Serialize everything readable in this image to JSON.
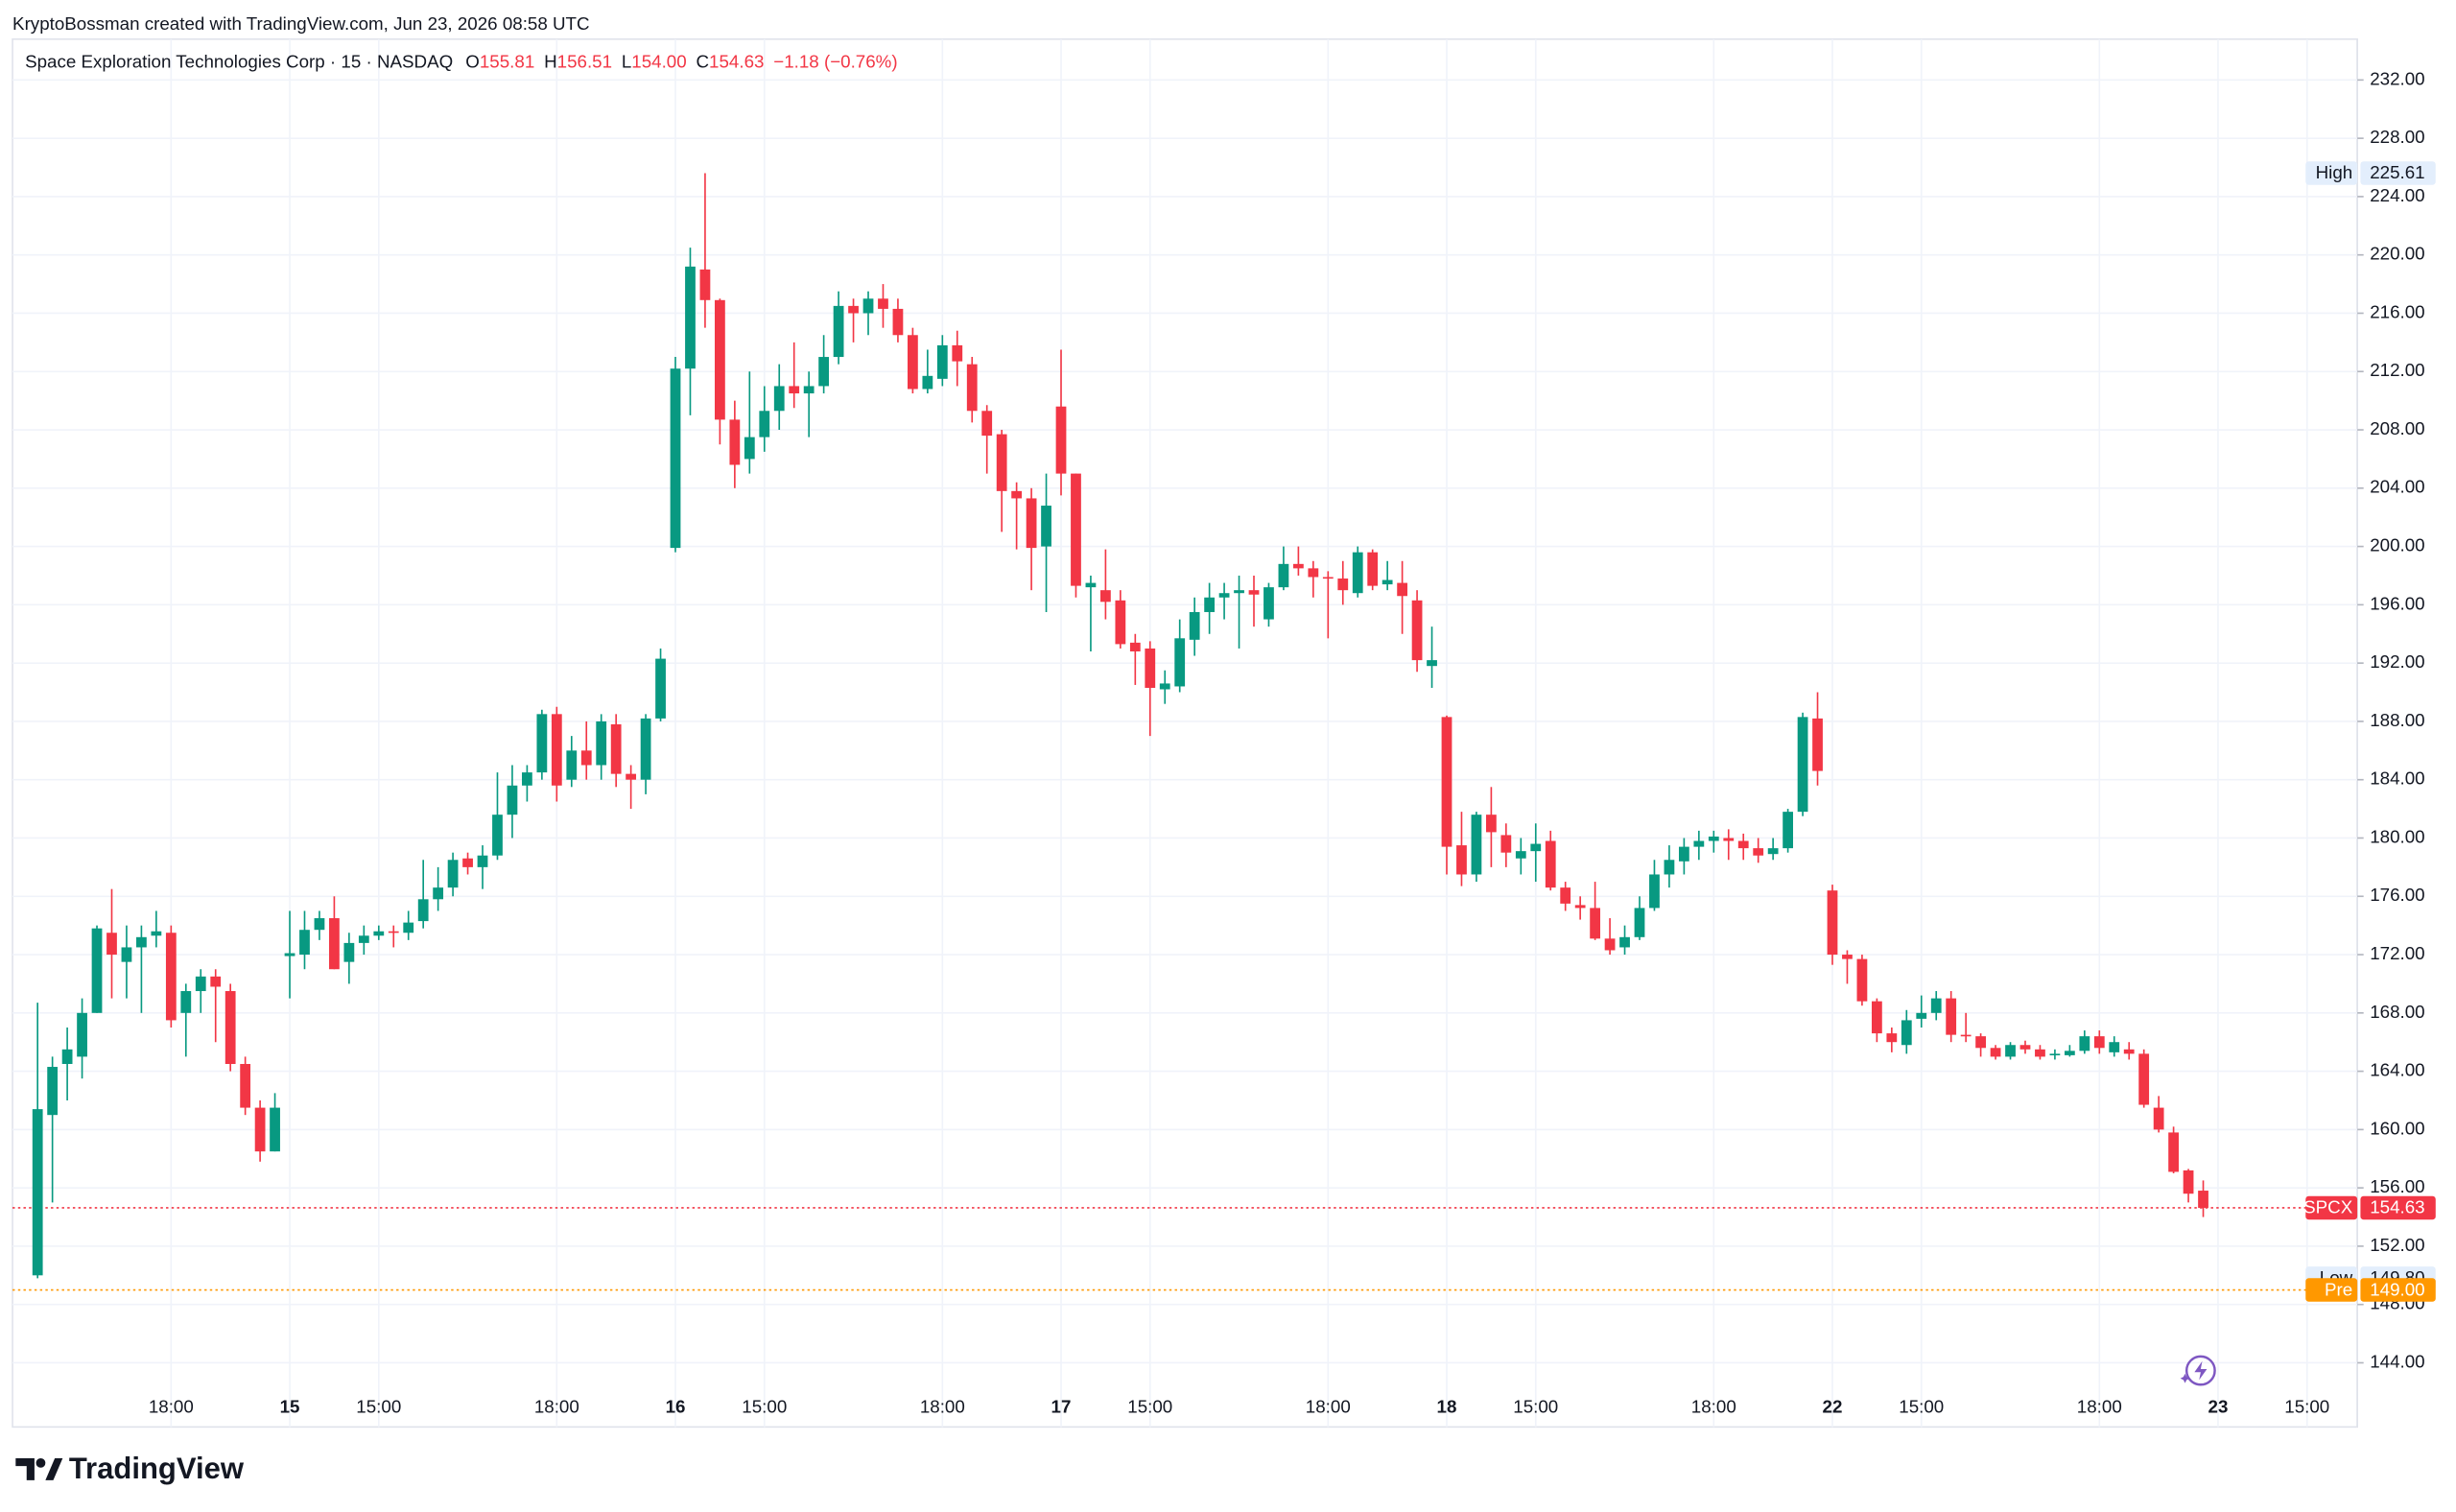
{
  "header": {
    "attribution": "KryptoBossman created with TradingView.com, Jun 23, 2026 08:58 UTC"
  },
  "footer": {
    "brand": "TradingView"
  },
  "chart_data": {
    "type": "candlestick",
    "title": "Space Exploration Technologies Corp · 15 · NASDAQ",
    "ohlc_legend": [
      {
        "key": "O",
        "value": 155.81
      },
      {
        "key": "H",
        "value": 156.51
      },
      {
        "key": "L",
        "value": 154,
        "label": "154.00"
      },
      {
        "key": "C",
        "value": 154.63
      }
    ],
    "change": "−1.18 (−0.76%)",
    "up_color": "#089981",
    "down_color": "#f23645",
    "categories": [
      null,
      null,
      null,
      null,
      null,
      null,
      null,
      null,
      null,
      "18:00",
      null,
      null,
      null,
      null,
      null,
      null,
      null,
      "15",
      null,
      null,
      null,
      null,
      null,
      "15:00",
      null,
      null,
      null,
      null,
      null,
      null,
      null,
      null,
      null,
      null,
      null,
      "18:00",
      null,
      null,
      null,
      null,
      null,
      null,
      null,
      "16",
      null,
      null,
      null,
      null,
      null,
      "15:00",
      null,
      null,
      null,
      null,
      null,
      null,
      null,
      null,
      null,
      null,
      null,
      "18:00",
      null,
      null,
      null,
      null,
      null,
      null,
      null,
      "17",
      null,
      null,
      null,
      null,
      null,
      "15:00",
      null,
      null,
      null,
      null,
      null,
      null,
      null,
      null,
      null,
      null,
      null,
      "18:00",
      null,
      null,
      null,
      null,
      null,
      null,
      null,
      "18",
      null,
      null,
      null,
      null,
      null,
      "15:00",
      null,
      null,
      null,
      null,
      null,
      null,
      null,
      null,
      null,
      null,
      null,
      "18:00",
      null,
      null,
      null,
      null,
      null,
      null,
      null,
      "22",
      null,
      null,
      null,
      null,
      null,
      "15:00",
      null,
      null,
      null,
      null,
      null,
      null,
      null,
      null,
      null,
      null,
      null,
      "18:00",
      null,
      null,
      null,
      null,
      null,
      null,
      null,
      "23",
      null,
      null,
      null,
      null,
      null,
      "15:00"
    ],
    "open": [
      150.0,
      161,
      164.5,
      165,
      168,
      173.5,
      171.5,
      172.5,
      173.3,
      173.5,
      168,
      169.5,
      170.5,
      169.5,
      164.5,
      161.5,
      158.5,
      171.9,
      172,
      173.7,
      174.5,
      171.5,
      172.8,
      173.3,
      173.6,
      173.5,
      174.3,
      175.8,
      176.6,
      178.6,
      178,
      178.8,
      181.6,
      183.6,
      184.5,
      188.5,
      184,
      186,
      185,
      187.8,
      184.4,
      184,
      188.2,
      199.9,
      212.2,
      219,
      216.9,
      208.7,
      206,
      207.5,
      209.3,
      211,
      210.5,
      211,
      213,
      216.5,
      216,
      217,
      216.3,
      214.5,
      210.8,
      211.5,
      213.8,
      212.5,
      209.3,
      207.7,
      203.8,
      203.3,
      200,
      209.6,
      205,
      197.2,
      197,
      196.3,
      193.4,
      193,
      190.2,
      190.4,
      193.6,
      195.5,
      196.5,
      196.8,
      197,
      195,
      197.2,
      198.8,
      198.5,
      197.9,
      197.8,
      196.8,
      199.6,
      197.4,
      197.5,
      196.3,
      191.8,
      188.3,
      179.5,
      177.5,
      181.6,
      180.2,
      178.6,
      179.1,
      179.8,
      176.6,
      175.4,
      175.2,
      173.1,
      172.5,
      173.2,
      175.2,
      177.5,
      178.4,
      179.4,
      179.8,
      180,
      179.8,
      179.3,
      178.9,
      179.3,
      181.8,
      188.2,
      176.4,
      172,
      171.7,
      168.8,
      166.6,
      165.8,
      167.6,
      168,
      169,
      166.5,
      166.4,
      165.6,
      165,
      165.8,
      165.5,
      165.1,
      165.1,
      165.4,
      166.4,
      165.3,
      165.5,
      165.2,
      161.5,
      159.8,
      157.2,
      155.81,
      null,
      null,
      null,
      null,
      null,
      null,
      null
    ],
    "high": [
      168.7,
      165,
      167,
      169,
      174,
      176.5,
      174,
      174,
      175,
      174,
      170,
      171,
      171,
      170,
      165,
      162,
      162.5,
      175,
      175,
      175,
      176,
      173.5,
      174,
      174,
      174,
      175,
      178.5,
      178,
      179,
      179,
      179.5,
      184.5,
      185,
      185,
      188.8,
      189,
      187,
      188,
      188.5,
      188.5,
      185,
      188.5,
      193,
      213,
      220.5,
      225.61,
      217,
      210,
      212,
      211,
      212.5,
      214,
      212,
      214.5,
      217.5,
      217,
      217.5,
      218,
      217,
      215,
      213.5,
      214.5,
      214.8,
      213,
      209.7,
      208,
      204.4,
      204,
      205,
      213.5,
      205,
      198,
      199.8,
      197,
      194,
      193.5,
      191.5,
      195,
      196.5,
      197.5,
      197.5,
      198,
      198,
      197.5,
      200,
      200,
      199,
      198.3,
      199,
      200,
      199.8,
      199,
      199,
      197,
      194.5,
      188.4,
      181.8,
      181.8,
      183.5,
      181,
      180,
      181,
      180.5,
      177,
      176,
      177,
      174.5,
      174,
      176,
      178.5,
      179.5,
      180,
      180.5,
      180.5,
      180.6,
      180.3,
      180,
      180,
      182,
      188.6,
      190,
      176.8,
      172.3,
      172,
      169,
      167,
      168.2,
      169.2,
      169.5,
      169.5,
      168,
      166.6,
      165.8,
      166,
      166.1,
      165.8,
      165.5,
      165.8,
      166.8,
      166.8,
      166.4,
      166,
      165.5,
      162.3,
      160.2,
      157.3,
      156.51,
      null,
      null,
      null,
      null,
      null,
      null,
      null
    ],
    "low": [
      149.8,
      155,
      162,
      163.5,
      168,
      169,
      169,
      168,
      172.5,
      167,
      165,
      168,
      166,
      164,
      161,
      157.8,
      158.5,
      169,
      171,
      173,
      171,
      170,
      172,
      173,
      172.5,
      173,
      173.8,
      175,
      176,
      177.5,
      176.5,
      178.5,
      180,
      182.5,
      184,
      182.5,
      183.5,
      184,
      184,
      183.5,
      182,
      183,
      188,
      199.6,
      209,
      215,
      207,
      204,
      205,
      206.5,
      208,
      209.5,
      207.5,
      210.5,
      212.5,
      214,
      214.5,
      215,
      214,
      210.5,
      210.5,
      211,
      211,
      208.5,
      205,
      201,
      199.8,
      197,
      195.5,
      203.5,
      196.5,
      192.8,
      195,
      193,
      190.5,
      187,
      189.2,
      190,
      192.5,
      194,
      195,
      193,
      194.5,
      194.5,
      197,
      198,
      196.5,
      193.7,
      196,
      196.5,
      197,
      197,
      194,
      191.4,
      190.3,
      177.5,
      176.7,
      177,
      178,
      178,
      177.5,
      177,
      176.4,
      175,
      174.4,
      173,
      172,
      172,
      173,
      175,
      176.6,
      177.5,
      178.5,
      179,
      178.5,
      178.5,
      178.3,
      178.5,
      179,
      181.5,
      183.6,
      171.3,
      170,
      168.5,
      166,
      165.3,
      165.2,
      167,
      167.5,
      166,
      166,
      165,
      164.8,
      164.8,
      165.2,
      164.8,
      164.8,
      165,
      165.2,
      165.2,
      165,
      164.8,
      161.5,
      159.8,
      157,
      155,
      154,
      null,
      null,
      null,
      null,
      null,
      null,
      null
    ],
    "close": [
      161.4,
      164.3,
      165.5,
      168,
      173.8,
      172,
      172.5,
      173.2,
      173.6,
      167.5,
      169.5,
      170.5,
      169.8,
      164.5,
      161.5,
      158.5,
      161.5,
      172.1,
      173.7,
      174.5,
      171,
      172.8,
      173.3,
      173.6,
      173.5,
      174.2,
      175.8,
      176.6,
      178.5,
      178,
      178.8,
      181.6,
      183.6,
      184.5,
      188.5,
      183.6,
      186,
      185,
      188,
      184.4,
      184,
      188.2,
      192.3,
      212.2,
      219.2,
      216.9,
      208.7,
      205.6,
      207.5,
      209.3,
      211,
      210.5,
      211,
      213,
      216.5,
      216,
      217,
      216.3,
      214.5,
      210.8,
      211.7,
      213.8,
      212.7,
      209.3,
      207.6,
      203.8,
      203.3,
      199.9,
      202.8,
      205,
      197.3,
      197.5,
      196.2,
      193.3,
      192.8,
      190.3,
      190.6,
      193.7,
      195.5,
      196.5,
      196.8,
      197,
      196.7,
      197.2,
      198.8,
      198.5,
      197.9,
      197.8,
      197,
      199.6,
      197.3,
      197.7,
      196.6,
      192.2,
      192.2,
      179.4,
      177.5,
      181.6,
      180.4,
      179,
      179.1,
      179.6,
      176.6,
      175.5,
      175.2,
      173.1,
      172.3,
      173.2,
      175.2,
      177.5,
      178.5,
      179.4,
      179.8,
      180.1,
      179.8,
      179.3,
      178.8,
      179.3,
      181.8,
      188.3,
      184.6,
      172,
      171.7,
      168.8,
      166.6,
      166,
      167.5,
      168,
      169,
      166.5,
      166.4,
      165.6,
      165,
      165.8,
      165.5,
      165,
      165.2,
      165.4,
      166.4,
      165.6,
      166,
      165.2,
      161.7,
      160,
      157.1,
      155.6,
      154.63,
      null,
      null,
      null,
      null,
      null,
      null,
      null
    ],
    "ylim": [
      139.6,
      234.8
    ],
    "yticks": [
      {
        "value": 144,
        "label": "144.00"
      },
      {
        "value": 148,
        "label": "148.00"
      },
      {
        "value": 152,
        "label": "152.00"
      },
      {
        "value": 156,
        "label": "156.00"
      },
      {
        "value": 160,
        "label": "160.00"
      },
      {
        "value": 164,
        "label": "164.00"
      },
      {
        "value": 168,
        "label": "168.00"
      },
      {
        "value": 172,
        "label": "172.00"
      },
      {
        "value": 176,
        "label": "176.00"
      },
      {
        "value": 180,
        "label": "180.00"
      },
      {
        "value": 184,
        "label": "184.00"
      },
      {
        "value": 188,
        "label": "188.00"
      },
      {
        "value": 192,
        "label": "192.00"
      },
      {
        "value": 196,
        "label": "196.00"
      },
      {
        "value": 200,
        "label": "200.00"
      },
      {
        "value": 204,
        "label": "204.00"
      },
      {
        "value": 208,
        "label": "208.00"
      },
      {
        "value": 212,
        "label": "212.00"
      },
      {
        "value": 216,
        "label": "216.00"
      },
      {
        "value": 220,
        "label": "220.00"
      },
      {
        "value": 224,
        "label": "224.00"
      },
      {
        "value": 228,
        "label": "228.00"
      },
      {
        "value": 232,
        "label": "232.00"
      }
    ],
    "grid": true,
    "price_markers": [
      {
        "name": "High",
        "value": 225.61,
        "color": "#e3eefc",
        "text_color": "#131722",
        "line": false
      },
      {
        "name": "SPCX",
        "value": 154.63,
        "color": "#f23645",
        "text_color": "#ffffff",
        "line": true
      },
      {
        "name": "Low",
        "value": 149.8,
        "label": "149.80",
        "color": "#e3eefc",
        "text_color": "#131722",
        "line": false
      },
      {
        "name": "Pre",
        "value": 149,
        "label": "149.00",
        "color": "#ff9800",
        "text_color": "#ffffff",
        "line": true
      }
    ]
  }
}
